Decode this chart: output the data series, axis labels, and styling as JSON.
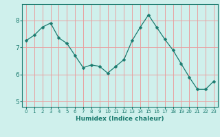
{
  "x": [
    0,
    1,
    2,
    3,
    4,
    5,
    6,
    7,
    8,
    9,
    10,
    11,
    12,
    13,
    14,
    15,
    16,
    17,
    18,
    19,
    20,
    21,
    22,
    23
  ],
  "y": [
    7.25,
    7.45,
    7.75,
    7.9,
    7.35,
    7.15,
    6.7,
    6.25,
    6.35,
    6.3,
    6.05,
    6.3,
    6.55,
    7.25,
    7.75,
    8.2,
    7.75,
    7.3,
    6.9,
    6.4,
    5.9,
    5.45,
    5.45,
    5.75
  ],
  "line_color": "#1a7a6e",
  "marker": "D",
  "marker_size": 2.5,
  "bg_color": "#cff0ec",
  "grid_color": "#e8a0a0",
  "xlabel": "Humidex (Indice chaleur)",
  "ylim": [
    4.8,
    8.6
  ],
  "xlim": [
    -0.5,
    23.5
  ],
  "yticks": [
    5,
    6,
    7,
    8
  ],
  "xticks": [
    0,
    1,
    2,
    3,
    4,
    5,
    6,
    7,
    8,
    9,
    10,
    11,
    12,
    13,
    14,
    15,
    16,
    17,
    18,
    19,
    20,
    21,
    22,
    23
  ]
}
